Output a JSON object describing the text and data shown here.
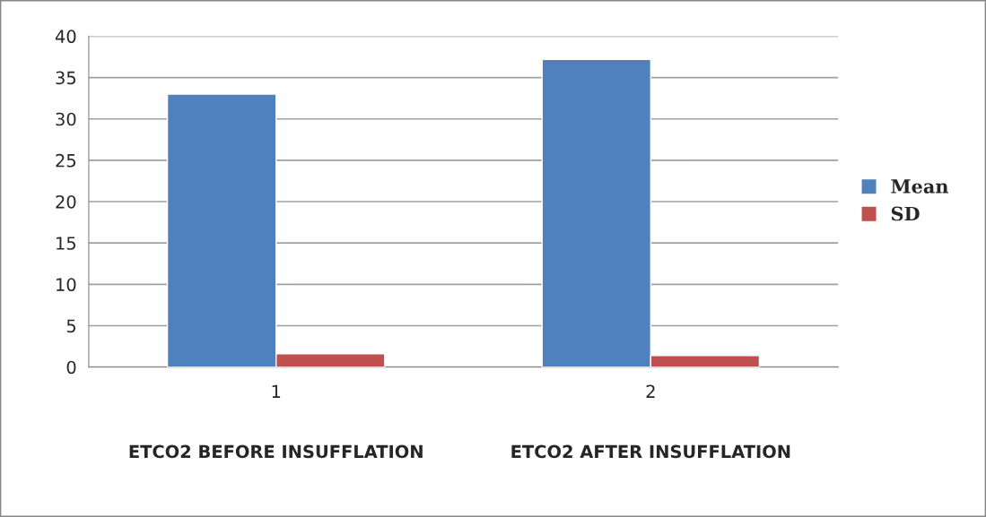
{
  "chart_data": {
    "type": "bar",
    "categories": [
      "1",
      "2"
    ],
    "series": [
      {
        "name": "Mean",
        "color": "#4f81bd",
        "values": [
          33.0,
          37.2
        ]
      },
      {
        "name": "SD",
        "color": "#c0504d",
        "values": [
          1.6,
          1.4
        ]
      }
    ],
    "ylim": [
      0,
      40
    ],
    "yticks": [
      0,
      5,
      10,
      15,
      20,
      25,
      30,
      35,
      40
    ],
    "grid": "y",
    "legend": "right",
    "annotations": [
      "ETCO2 BEFORE INSUFFLATION",
      "ETCO2 AFTER INSUFFLATION"
    ]
  }
}
